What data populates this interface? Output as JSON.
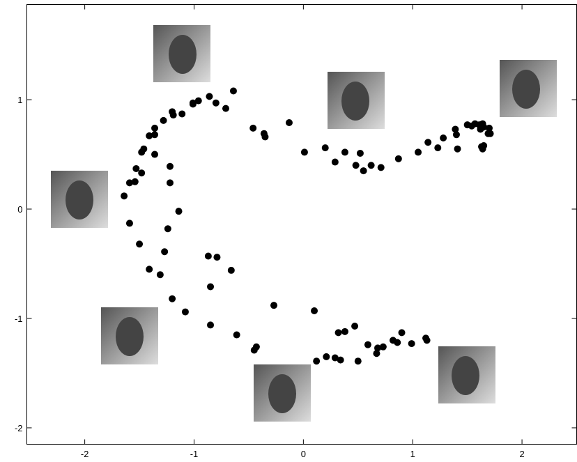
{
  "chart_data": {
    "type": "scatter",
    "color": "#000000",
    "x": [
      -1.64,
      -1.59,
      -1.54,
      -1.53,
      -1.48,
      -1.48,
      -1.46,
      -1.41,
      -1.36,
      -1.36,
      -1.28,
      -1.2,
      -1.19,
      -1.11,
      -1.01,
      -1.01,
      -0.96,
      -0.86,
      -0.8,
      -0.71,
      -0.64,
      -0.46,
      -0.36,
      -0.35,
      -0.13,
      0.01,
      0.2,
      0.29,
      0.38,
      0.48,
      0.52,
      0.55,
      0.62,
      0.71,
      0.87,
      1.05,
      1.14,
      1.23,
      1.28,
      1.39,
      1.4,
      1.41,
      1.5,
      1.54,
      1.57,
      1.61,
      1.63,
      1.64,
      1.62,
      1.65,
      1.7,
      1.71,
      1.69,
      1.63,
      1.65,
      1.64,
      -1.36,
      -1.22,
      -1.22,
      -1.14,
      -1.24,
      -1.27,
      -1.2,
      -1.08,
      -1.59,
      -1.5,
      -1.41,
      -1.31,
      -0.87,
      -0.79,
      -0.66,
      -0.85,
      -0.85,
      -0.61,
      -0.45,
      -0.43,
      -0.27,
      0.1,
      0.12,
      0.21,
      0.29,
      0.34,
      0.32,
      0.38,
      0.47,
      0.5,
      0.59,
      0.67,
      0.68,
      0.73,
      0.82,
      0.86,
      0.9,
      0.99,
      1.12,
      1.13
    ],
    "y": [
      0.12,
      0.24,
      0.25,
      0.37,
      0.33,
      0.52,
      0.55,
      0.67,
      0.68,
      0.74,
      0.81,
      0.89,
      0.86,
      0.87,
      0.96,
      0.97,
      0.99,
      1.03,
      0.97,
      0.92,
      1.08,
      0.74,
      0.69,
      0.66,
      0.79,
      0.52,
      0.56,
      0.43,
      0.52,
      0.4,
      0.51,
      0.35,
      0.4,
      0.38,
      0.46,
      0.52,
      0.61,
      0.56,
      0.65,
      0.73,
      0.68,
      0.55,
      0.77,
      0.76,
      0.78,
      0.77,
      0.76,
      0.78,
      0.73,
      0.75,
      0.74,
      0.69,
      0.69,
      0.57,
      0.58,
      0.55,
      0.5,
      0.39,
      0.24,
      -0.02,
      -0.18,
      -0.39,
      -0.82,
      -0.94,
      -0.13,
      -0.32,
      -0.55,
      -0.6,
      -0.43,
      -0.44,
      -0.56,
      -0.71,
      -1.06,
      -1.15,
      -1.29,
      -1.26,
      -0.88,
      -0.93,
      -1.39,
      -1.35,
      -1.36,
      -1.38,
      -1.13,
      -1.12,
      -1.07,
      -1.39,
      -1.24,
      -1.32,
      -1.27,
      -1.26,
      -1.2,
      -1.22,
      -1.13,
      -1.23,
      -1.18,
      -1.2
    ],
    "xlim": [
      -2.53,
      2.5
    ],
    "ylim": [
      -2.15,
      1.87
    ],
    "xticks": [
      -2,
      -1,
      0,
      1,
      2
    ],
    "yticks": [
      -2,
      -1,
      0,
      1
    ]
  }
}
